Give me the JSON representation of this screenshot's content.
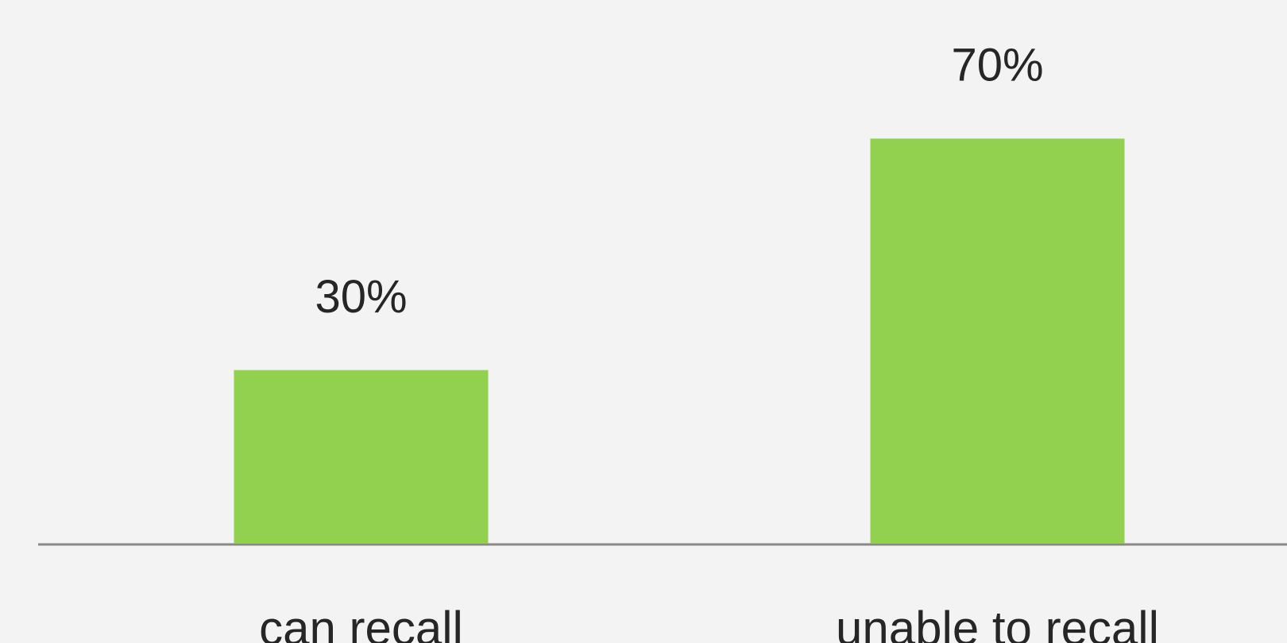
{
  "chart_data": {
    "type": "bar",
    "categories": [
      "can recall",
      "unable to recall"
    ],
    "values": [
      30,
      70
    ],
    "value_labels": [
      "30%",
      "70%"
    ],
    "color": "#92d050"
  }
}
